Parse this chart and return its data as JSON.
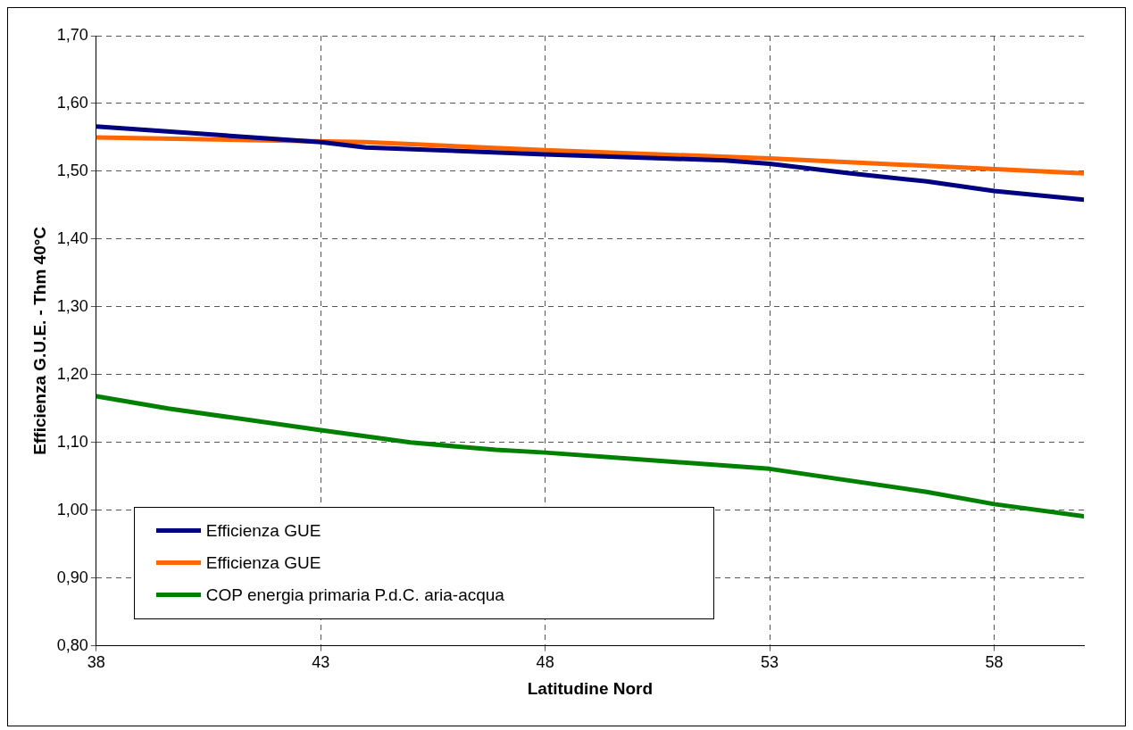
{
  "chart_data": {
    "type": "line",
    "xlabel": "Latitudine Nord",
    "ylabel": "Efficienza G.U.E. - Thm 40°C",
    "xlim": [
      38,
      60
    ],
    "xticks": [
      38,
      43,
      48,
      53,
      58
    ],
    "ylim": [
      0.8,
      1.7
    ],
    "yticks": [
      {
        "value": 0.8,
        "label": "0,80"
      },
      {
        "value": 0.9,
        "label": "0,90"
      },
      {
        "value": 1.0,
        "label": "1,00"
      },
      {
        "value": 1.1,
        "label": "1,10"
      },
      {
        "value": 1.2,
        "label": "1,20"
      },
      {
        "value": 1.3,
        "label": "1,30"
      },
      {
        "value": 1.4,
        "label": "1,40"
      },
      {
        "value": 1.5,
        "label": "1,50"
      },
      {
        "value": 1.6,
        "label": "1,60"
      },
      {
        "value": 1.7,
        "label": "1,70"
      }
    ],
    "grid": true,
    "legend": "bottom left",
    "marker": "none",
    "line_style": "solid",
    "series": [
      {
        "name": "Efficienza GUE",
        "color": "#000080",
        "x": [
          38,
          43,
          44,
          48,
          52,
          53,
          54.8,
          56.5,
          58,
          60
        ],
        "values": [
          1.566,
          1.543,
          1.535,
          1.525,
          1.516,
          1.511,
          1.497,
          1.485,
          1.471,
          1.458
        ]
      },
      {
        "name": "Efficienza GUE",
        "color": "#ff6600",
        "x": [
          38,
          44,
          48,
          53,
          60
        ],
        "values": [
          1.55,
          1.543,
          1.531,
          1.519,
          1.497
        ]
      },
      {
        "name": "COP energia primaria P.d.C. aria-acqua",
        "color": "#008000",
        "x": [
          38,
          39.6,
          43,
          45,
          46.9,
          48,
          53,
          56.5,
          58,
          60
        ],
        "values": [
          1.168,
          1.15,
          1.118,
          1.1,
          1.089,
          1.085,
          1.061,
          1.027,
          1.009,
          0.991
        ]
      }
    ]
  }
}
